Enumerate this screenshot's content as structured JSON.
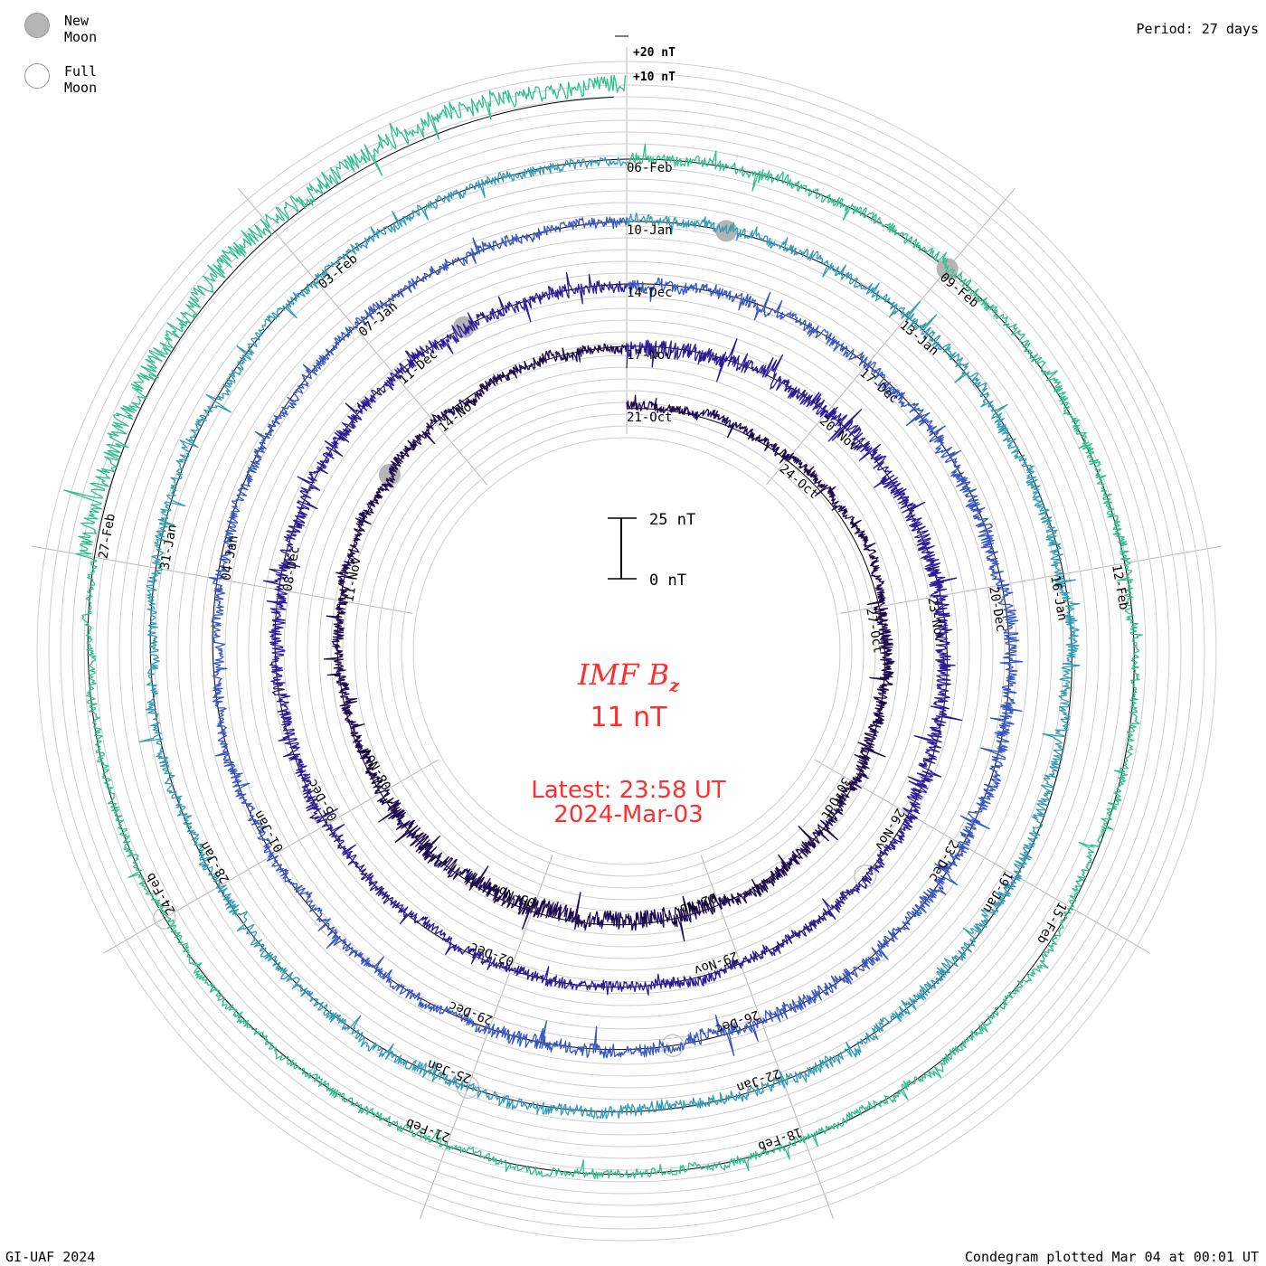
{
  "legend": {
    "new_moon": "New Moon",
    "full_moon": "Full Moon",
    "new_moon_color": "#b5b5b5",
    "full_moon_color": "#ffffff"
  },
  "header": {
    "period": "Period: 27 days"
  },
  "footer": {
    "left": "GI-UAF 2024",
    "right": "Condegram plotted Mar 04 at 00:01 UT"
  },
  "center": {
    "title_main": "IMF B",
    "title_sub": "z",
    "value": "11 nT",
    "latest_label": "Latest: 23:58 UT",
    "latest_date": "2024-Mar-03",
    "accent_color": "#ff2f2f"
  },
  "chart_data": {
    "type": "line",
    "projection": "spiral",
    "period_days": 27,
    "scale_labels": [
      "+20 nT",
      "+10 nT"
    ],
    "scale_bar": {
      "top_label": "25 nT",
      "bottom_label": "0 nT",
      "value_nT": 25
    },
    "start": "2023-10-21",
    "end": "2024-03-03",
    "date_labels": [
      "21-Oct",
      "24-Oct",
      "27-Oct",
      "30-Oct",
      "02-Nov",
      "05-Nov",
      "08-Nov",
      "11-Nov",
      "14-Nov",
      "17-Nov",
      "20-Nov",
      "23-Nov",
      "26-Nov",
      "29-Nov",
      "02-Dec",
      "05-Dec",
      "08-Dec",
      "11-Dec",
      "14-Dec",
      "17-Dec",
      "20-Dec",
      "23-Dec",
      "26-Dec",
      "29-Dec",
      "01-Jan",
      "04-Jan",
      "07-Jan",
      "10-Jan",
      "13-Jan",
      "16-Jan",
      "19-Jan",
      "22-Jan",
      "25-Jan",
      "28-Jan",
      "31-Jan",
      "03-Feb",
      "06-Feb",
      "09-Feb",
      "12-Feb",
      "15-Feb",
      "18-Feb",
      "21-Feb",
      "24-Feb",
      "27-Feb"
    ],
    "series_colors": [
      "#1e0a50",
      "#2e1a99",
      "#3556c4",
      "#2f9bb8",
      "#2fbf8e",
      "#55c23a",
      "#a7b21d",
      "#c8921c",
      "#c8571a",
      "#c8140f"
    ],
    "moons": [
      {
        "phase": "new",
        "date": "2023-11-13"
      },
      {
        "phase": "full",
        "date": "2023-11-27"
      },
      {
        "phase": "new",
        "date": "2023-12-12"
      },
      {
        "phase": "full",
        "date": "2023-12-27"
      },
      {
        "phase": "new",
        "date": "2024-01-11"
      },
      {
        "phase": "full",
        "date": "2024-01-25"
      },
      {
        "phase": "new",
        "date": "2024-02-09"
      },
      {
        "phase": "full",
        "date": "2024-02-24"
      }
    ],
    "segments": [
      {
        "from": "2023-10-21",
        "to": "2023-10-27",
        "mean_nT": 2,
        "amplitude_nT": 4
      },
      {
        "from": "2023-10-27",
        "to": "2023-11-02",
        "mean_nT": 0,
        "amplitude_nT": 6
      },
      {
        "from": "2023-11-02",
        "to": "2023-11-08",
        "mean_nT": -1,
        "amplitude_nT": 9
      },
      {
        "from": "2023-11-08",
        "to": "2023-11-17",
        "mean_nT": 0,
        "amplitude_nT": 5
      },
      {
        "from": "2023-11-17",
        "to": "2023-11-26",
        "mean_nT": 0,
        "amplitude_nT": 8
      },
      {
        "from": "2023-11-26",
        "to": "2023-12-05",
        "mean_nT": 0,
        "amplitude_nT": 5
      },
      {
        "from": "2023-12-05",
        "to": "2023-12-17",
        "mean_nT": 0,
        "amplitude_nT": 6
      },
      {
        "from": "2023-12-17",
        "to": "2023-12-29",
        "mean_nT": 0,
        "amplitude_nT": 7
      },
      {
        "from": "2023-12-29",
        "to": "2024-01-13",
        "mean_nT": 0,
        "amplitude_nT": 5
      },
      {
        "from": "2024-01-13",
        "to": "2024-01-28",
        "mean_nT": 0,
        "amplitude_nT": 6
      },
      {
        "from": "2024-01-28",
        "to": "2024-02-12",
        "mean_nT": 0,
        "amplitude_nT": 5
      },
      {
        "from": "2024-02-12",
        "to": "2024-02-27",
        "mean_nT": 0,
        "amplitude_nT": 4
      },
      {
        "from": "2024-02-27",
        "to": "2024-03-03",
        "mean_nT": 5,
        "amplitude_nT": 9
      }
    ]
  }
}
